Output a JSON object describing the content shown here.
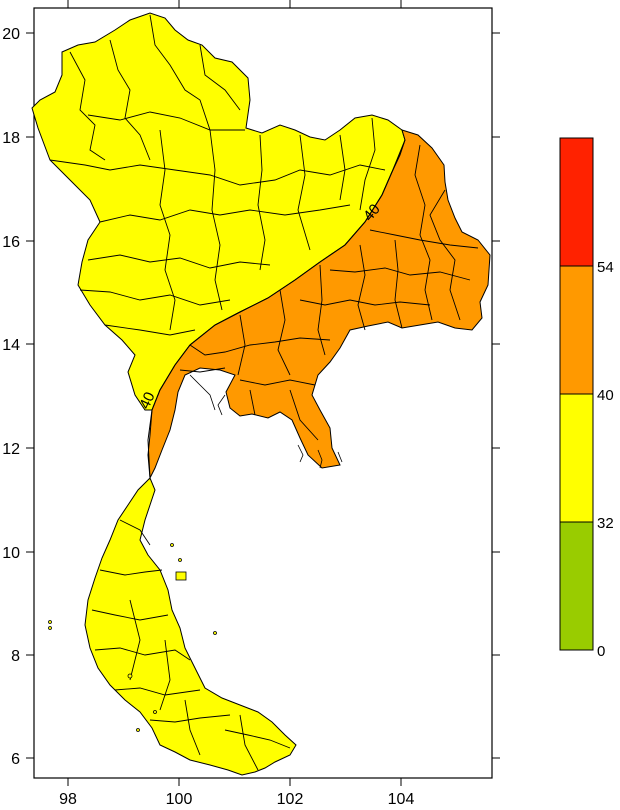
{
  "map": {
    "x_ticks": [
      "98",
      "100",
      "102",
      "104"
    ],
    "y_ticks": [
      "20",
      "18",
      "16",
      "14",
      "12",
      "10",
      "8",
      "6"
    ],
    "contour_labels": [
      "40",
      "40"
    ],
    "zone_colors": {
      "low": "#ffff00",
      "high": "#ff9900"
    }
  },
  "legend": {
    "bins": [
      {
        "color": "#ff2200"
      },
      {
        "color": "#ff9900"
      },
      {
        "color": "#ffff00"
      },
      {
        "color": "#99cc00"
      }
    ],
    "labels": [
      "54",
      "40",
      "32",
      "0"
    ]
  }
}
